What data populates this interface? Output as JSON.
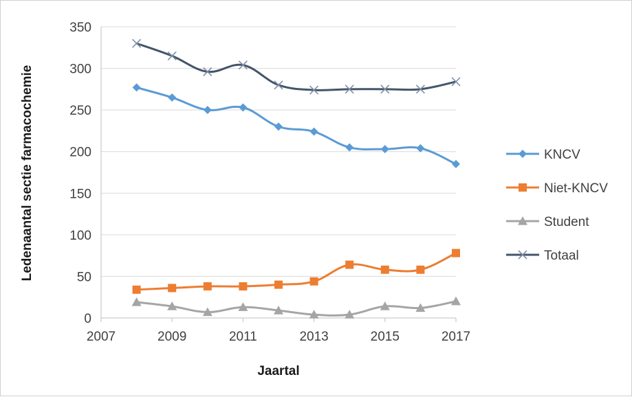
{
  "chart_data": {
    "type": "line",
    "title": "",
    "xlabel": "Jaartal",
    "ylabel": "Ledenaantal sectie farmacochemie",
    "xlim": [
      2007,
      2017
    ],
    "ylim": [
      0,
      350
    ],
    "xticks": [
      2007,
      2009,
      2011,
      2013,
      2015,
      2017
    ],
    "yticks": [
      0,
      50,
      100,
      150,
      200,
      250,
      300,
      350
    ],
    "grid": "horizontal",
    "legend_position": "right",
    "x": [
      2008,
      2009,
      2010,
      2011,
      2012,
      2013,
      2014,
      2015,
      2016,
      2017
    ],
    "series": [
      {
        "name": "KNCV",
        "color": "#5b9bd5",
        "marker": "diamond",
        "values": [
          277,
          265,
          250,
          253,
          230,
          224,
          205,
          203,
          204,
          185
        ]
      },
      {
        "name": "Niet-KNCV",
        "color": "#ed7d31",
        "marker": "square",
        "values": [
          34,
          36,
          38,
          38,
          40,
          44,
          64,
          58,
          58,
          78
        ]
      },
      {
        "name": "Student",
        "color": "#a5a5a5",
        "marker": "triangle",
        "values": [
          19,
          14,
          7,
          13,
          9,
          4,
          4,
          14,
          12,
          20
        ]
      },
      {
        "name": "Totaal",
        "color": "#44546a",
        "marker": "x",
        "values": [
          330,
          315,
          296,
          304,
          280,
          274,
          275,
          275,
          275,
          284
        ]
      }
    ]
  }
}
